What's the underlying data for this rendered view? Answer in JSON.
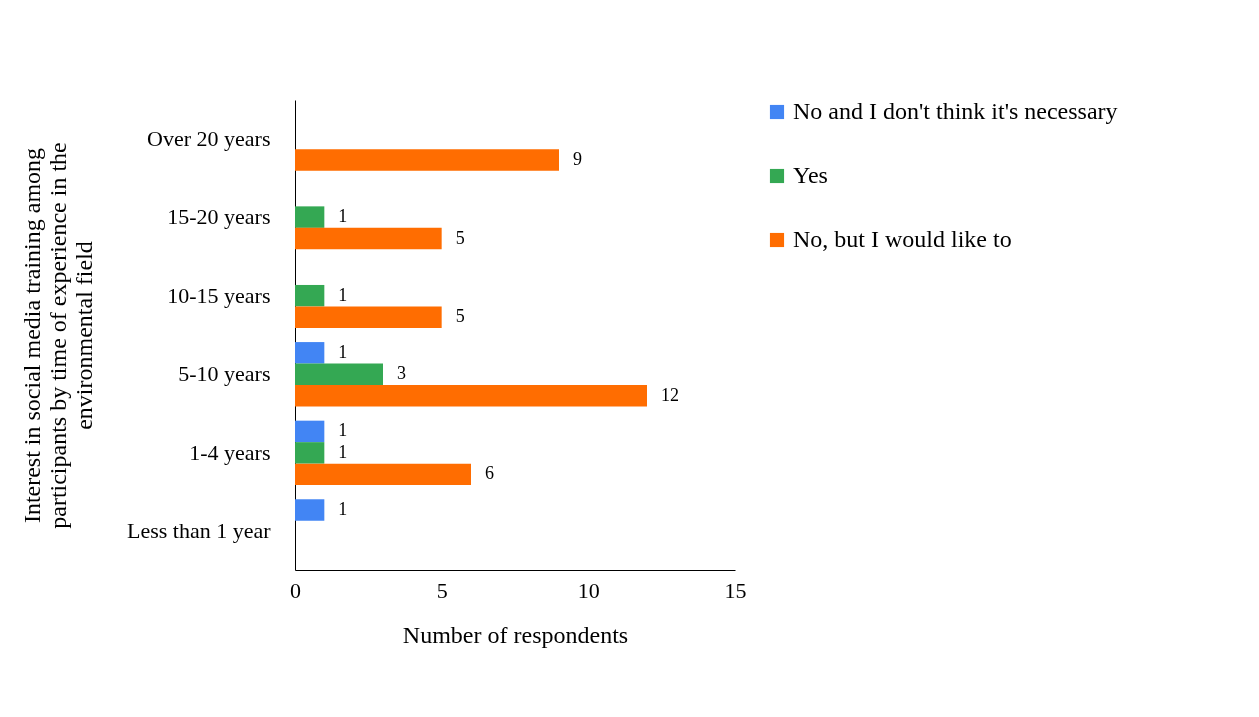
{
  "chart_data": {
    "type": "bar",
    "orientation": "horizontal",
    "ylabel": "Interest in social media training among participants by time of experience in the environmental field",
    "xlabel": "Number of respondents",
    "categories": [
      "Over 20 years",
      "15-20 years",
      "10-15 years",
      "5-10 years",
      "1-4 years",
      "Less than 1 year"
    ],
    "series": [
      {
        "name": "No and I don't think it's necessary",
        "color": "#4285f4",
        "values": [
          null,
          null,
          null,
          1,
          1,
          1
        ]
      },
      {
        "name": "Yes",
        "color": "#34a853",
        "values": [
          null,
          1,
          1,
          3,
          1,
          null
        ]
      },
      {
        "name": "No, but I would like to",
        "color": "#ff6d01",
        "values": [
          9,
          5,
          5,
          12,
          6,
          null
        ]
      }
    ],
    "xlim": [
      0,
      15
    ],
    "xticks": [
      0,
      5,
      10,
      15
    ],
    "grid": false,
    "legend": "right",
    "data_labels": true
  }
}
